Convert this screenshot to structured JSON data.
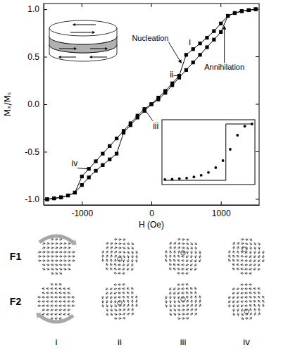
{
  "chart_data": [
    {
      "type": "line",
      "xlabel": "H (Oe)",
      "ylabel": "Mₓ/Mₛ",
      "xlim": [
        -1550,
        1550
      ],
      "ylim": [
        -1.06,
        1.06
      ],
      "xticks": [
        -1000,
        0,
        1000
      ],
      "yticks": [
        {
          "value": -1,
          "label": "-1.0"
        },
        {
          "value": -0.5,
          "label": "-0.5"
        },
        {
          "value": 0,
          "label": "0.0"
        },
        {
          "value": 0.5,
          "label": "0.5"
        },
        {
          "value": 1,
          "label": "1.0"
        }
      ],
      "x": [
        -1500,
        -1400,
        -1300,
        -1200,
        -1100,
        -1000,
        -900,
        -800,
        -700,
        -600,
        -500,
        -400,
        -300,
        -200,
        -100,
        0,
        100,
        200,
        300,
        400,
        500,
        600,
        700,
        800,
        900,
        1000,
        1100,
        1200,
        1300,
        1400,
        1500
      ],
      "series": [
        {
          "color": "#000000",
          "marker": "square",
          "line_style": "solid",
          "values": [
            -1.0,
            -0.99,
            -0.98,
            -0.96,
            -0.93,
            -0.76,
            -0.68,
            -0.6,
            -0.52,
            -0.44,
            -0.36,
            -0.28,
            -0.2,
            -0.12,
            -0.05,
            0.0,
            0.07,
            0.14,
            0.22,
            0.3,
            0.52,
            0.58,
            0.64,
            0.7,
            0.77,
            0.85,
            0.93,
            0.96,
            0.98,
            0.99,
            1.0
          ]
        },
        {
          "color": "#000000",
          "marker": "square",
          "line_style": "solid",
          "values": [
            -1.0,
            -0.99,
            -0.98,
            -0.96,
            -0.93,
            -0.85,
            -0.77,
            -0.7,
            -0.64,
            -0.58,
            -0.52,
            -0.3,
            -0.22,
            -0.14,
            -0.07,
            0.0,
            0.05,
            0.12,
            0.2,
            0.28,
            0.36,
            0.44,
            0.52,
            0.6,
            0.68,
            0.76,
            0.93,
            0.96,
            0.98,
            0.99,
            1.0
          ]
        }
      ],
      "annotations": [
        {
          "text": "Nucleation",
          "x": 450,
          "y": 0.41
        },
        {
          "text": "Annihilation",
          "x": 1050,
          "y": 0.85
        },
        {
          "text": "i",
          "x": 500,
          "y": 0.52
        },
        {
          "text": "ii",
          "x": 400,
          "y": 0.3
        },
        {
          "text": "iii",
          "x": -100,
          "y": -0.05
        },
        {
          "text": "iv",
          "x": -900,
          "y": -0.68
        }
      ]
    },
    {
      "type": "line",
      "tick_labels": false,
      "xlim": [
        -1600,
        1600
      ],
      "ylim": [
        -1.15,
        1.15
      ],
      "series": [
        {
          "color": "#000000",
          "marker": "none",
          "line_style": "solid",
          "x": [
            -1500,
            600,
            600,
            1500
          ],
          "values": [
            -1,
            -1,
            1,
            1
          ]
        },
        {
          "color": "#000000",
          "marker": "circle",
          "line_style": "none",
          "x": [
            -1500,
            -1250,
            -1000,
            -750,
            -500,
            -250,
            0,
            250,
            500,
            750,
            1000,
            1250,
            1500
          ],
          "values": [
            -0.97,
            -0.96,
            -0.94,
            -0.92,
            -0.88,
            -0.82,
            -0.72,
            -0.55,
            -0.3,
            0.1,
            0.6,
            0.92,
            1.0
          ]
        }
      ]
    }
  ],
  "panels": {
    "rows": [
      "F1",
      "F2"
    ],
    "columns": [
      "i",
      "ii",
      "iii",
      "iv"
    ]
  }
}
